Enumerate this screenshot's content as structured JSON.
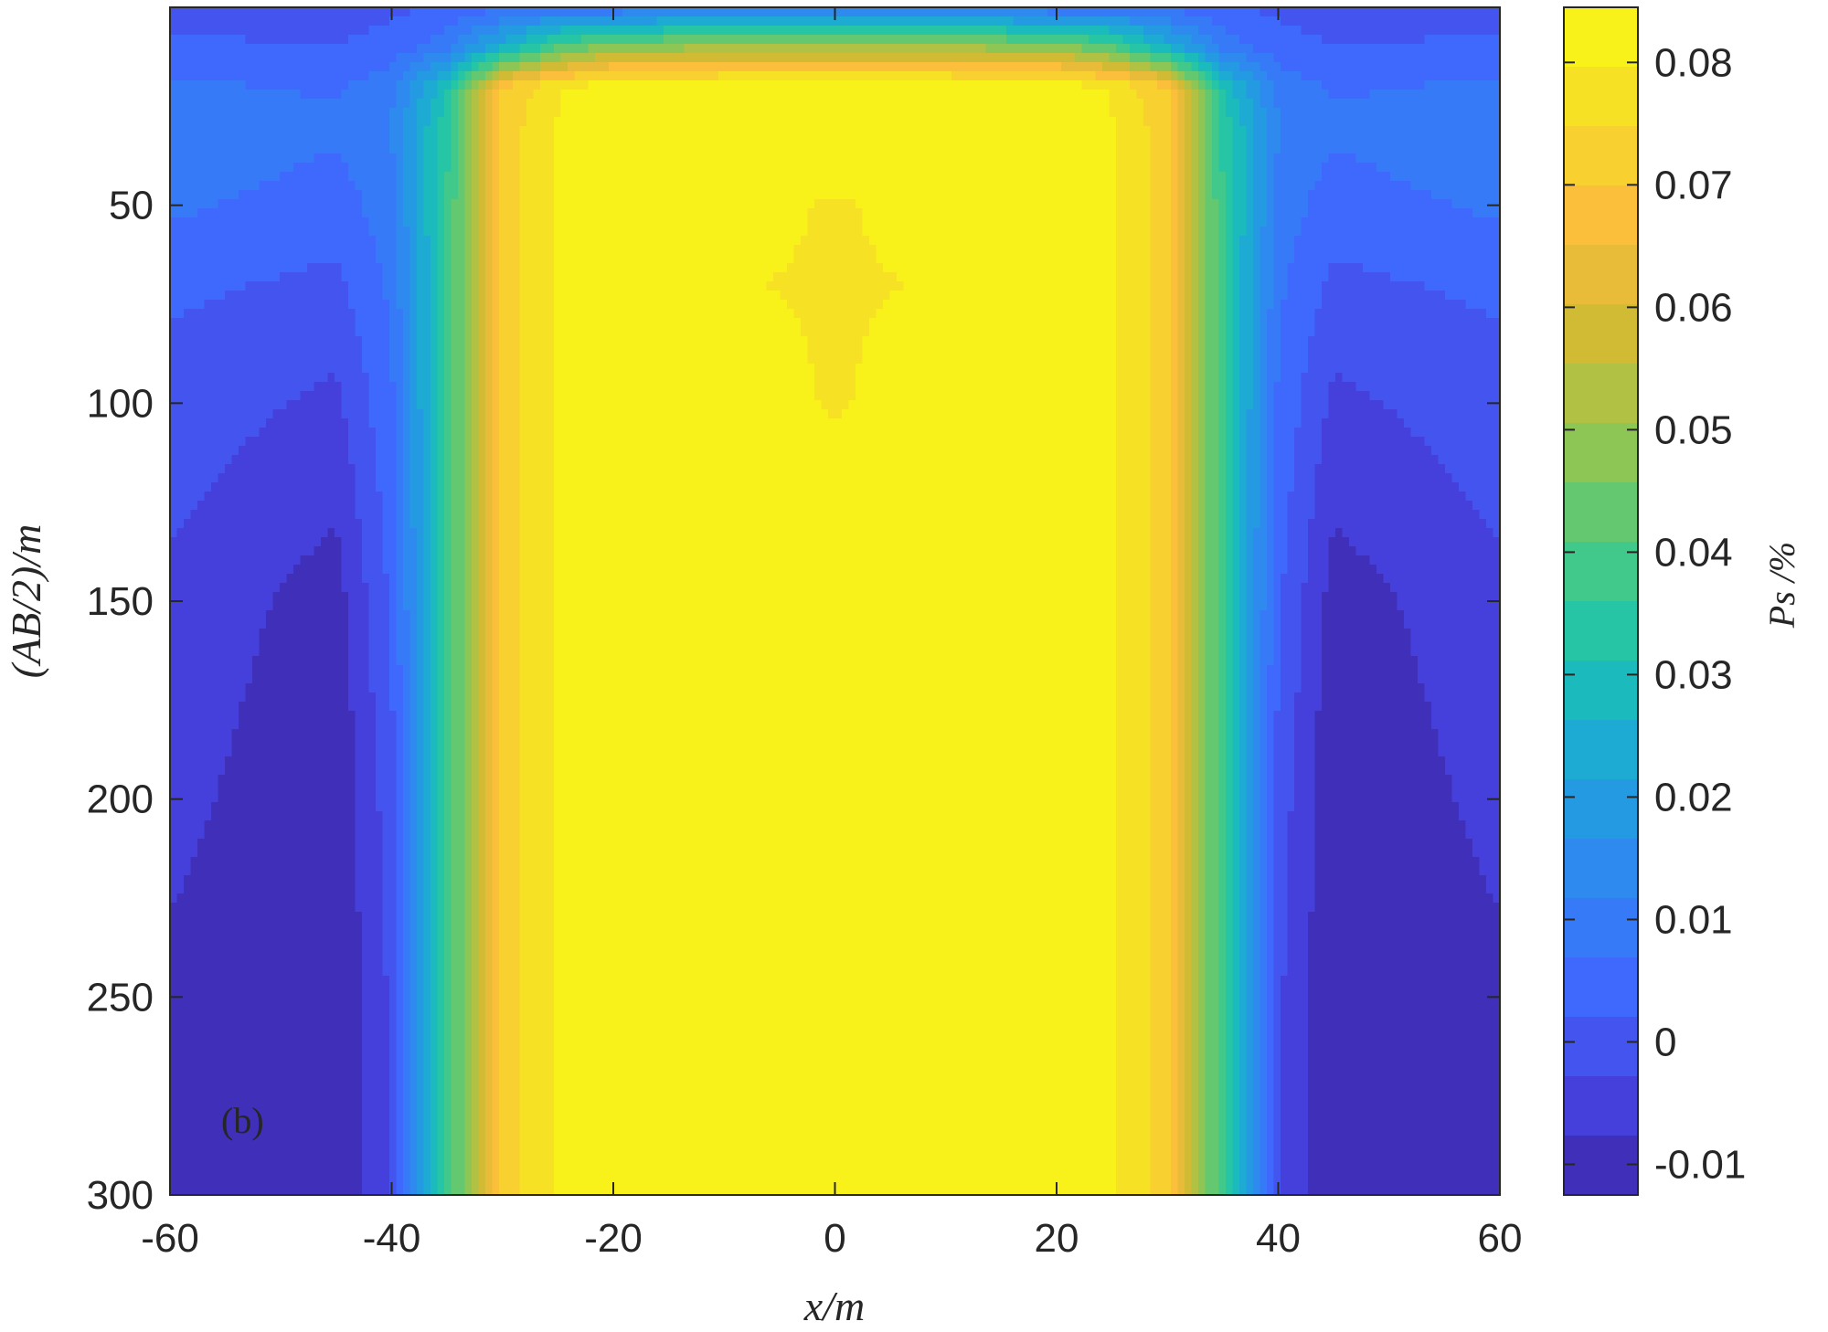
{
  "chart_data": {
    "type": "heatmap",
    "subtype": "filled-contour",
    "xlabel": "x/m",
    "ylabel": "(AB/2)/m",
    "colorbar_label": "Ps /%",
    "panel_label": "(b)",
    "xlim": [
      -60,
      60
    ],
    "ylim": [
      0,
      300
    ],
    "y_reversed": true,
    "x_ticks": [
      "-60",
      "-40",
      "-20",
      "0",
      "20",
      "40",
      "60"
    ],
    "y_ticks": [
      "50",
      "100",
      "150",
      "200",
      "250",
      "300"
    ],
    "colorbar_ticks": [
      "0.08",
      "0.07",
      "0.06",
      "0.05",
      "0.04",
      "0.03",
      "0.02",
      "0.01",
      "0",
      "-0.01"
    ],
    "colorbar_range": [
      -0.0125,
      0.0845
    ],
    "colormap": "parula",
    "colormap_stops": [
      "#3e26a8",
      "#4745e6",
      "#3d6cfe",
      "#2e89f0",
      "#1da7d9",
      "#1ac3b0",
      "#4cca80",
      "#96c54f",
      "#d3bb33",
      "#fbbd3d",
      "#f6db27",
      "#f9fb15"
    ],
    "x_grid": [
      -60,
      -45,
      -40,
      -35,
      -30,
      -25,
      -20,
      -10,
      0,
      10,
      20,
      25,
      30,
      35,
      40,
      45,
      60
    ],
    "y_grid": [
      0,
      10,
      20,
      30,
      50,
      70,
      100,
      150,
      200,
      250,
      300
    ],
    "z": [
      [
        0.0,
        0.0,
        0.001,
        0.003,
        0.006,
        0.007,
        0.007,
        0.007,
        0.007,
        0.007,
        0.007,
        0.007,
        0.006,
        0.003,
        0.001,
        0.0,
        0.0
      ],
      [
        0.003,
        0.002,
        0.004,
        0.01,
        0.025,
        0.04,
        0.048,
        0.05,
        0.05,
        0.05,
        0.048,
        0.04,
        0.025,
        0.01,
        0.004,
        0.002,
        0.003
      ],
      [
        0.008,
        0.006,
        0.01,
        0.03,
        0.07,
        0.079,
        0.083,
        0.084,
        0.084,
        0.084,
        0.083,
        0.079,
        0.07,
        0.03,
        0.01,
        0.006,
        0.008
      ],
      [
        0.012,
        0.008,
        0.012,
        0.035,
        0.072,
        0.08,
        0.085,
        0.085,
        0.085,
        0.085,
        0.085,
        0.08,
        0.072,
        0.035,
        0.012,
        0.008,
        0.012
      ],
      [
        0.008,
        0.004,
        0.01,
        0.036,
        0.073,
        0.08,
        0.082,
        0.082,
        0.079,
        0.082,
        0.082,
        0.08,
        0.073,
        0.036,
        0.01,
        0.004,
        0.008
      ],
      [
        0.003,
        0.001,
        0.008,
        0.036,
        0.073,
        0.08,
        0.084,
        0.08,
        0.079,
        0.08,
        0.084,
        0.08,
        0.073,
        0.036,
        0.008,
        0.001,
        0.003
      ],
      [
        0.0,
        -0.004,
        0.006,
        0.036,
        0.073,
        0.08,
        0.085,
        0.083,
        0.079,
        0.083,
        0.085,
        0.08,
        0.073,
        0.036,
        0.006,
        -0.004,
        0.0
      ],
      [
        -0.004,
        -0.01,
        0.003,
        0.036,
        0.073,
        0.08,
        0.085,
        0.085,
        0.085,
        0.085,
        0.085,
        0.08,
        0.073,
        0.036,
        0.003,
        -0.01,
        -0.004
      ],
      [
        -0.006,
        -0.012,
        0.0,
        0.036,
        0.073,
        0.08,
        0.085,
        0.085,
        0.085,
        0.085,
        0.085,
        0.08,
        0.073,
        0.036,
        0.0,
        -0.012,
        -0.006
      ],
      [
        -0.009,
        -0.012,
        -0.002,
        0.036,
        0.073,
        0.08,
        0.085,
        0.085,
        0.085,
        0.085,
        0.085,
        0.08,
        0.073,
        0.036,
        -0.002,
        -0.012,
        -0.009
      ],
      [
        -0.01,
        -0.012,
        -0.003,
        0.036,
        0.073,
        0.08,
        0.085,
        0.085,
        0.085,
        0.085,
        0.085,
        0.08,
        0.073,
        0.036,
        -0.003,
        -0.012,
        -0.01
      ]
    ]
  }
}
